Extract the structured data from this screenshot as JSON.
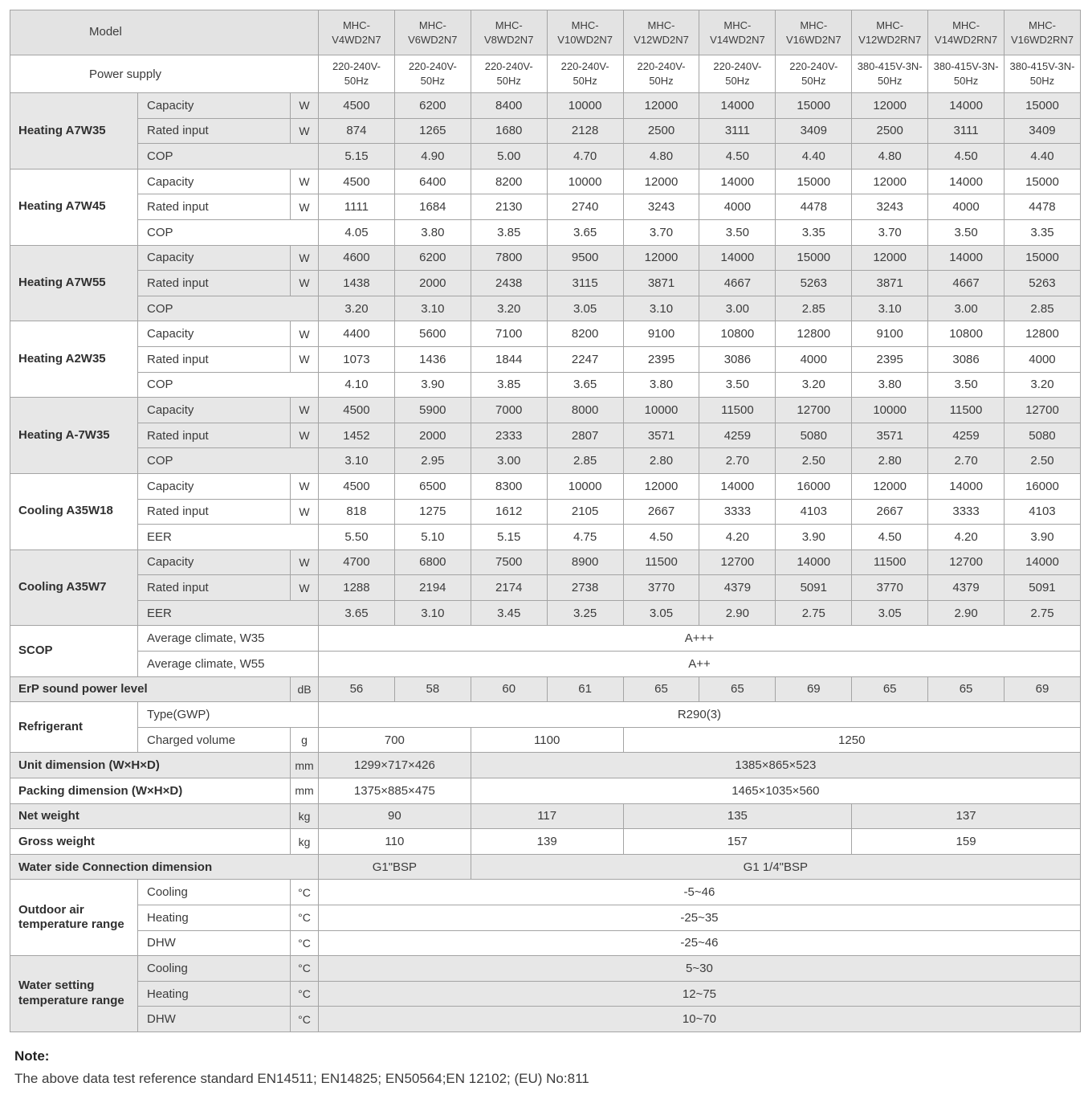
{
  "header": {
    "model_label": "Model",
    "models": [
      "MHC-V4WD2N7",
      "MHC-V6WD2N7",
      "MHC-V8WD2N7",
      "MHC-V10WD2N7",
      "MHC-V12WD2N7",
      "MHC-V14WD2N7",
      "MHC-V16WD2N7",
      "MHC-V12WD2RN7",
      "MHC-V14WD2RN7",
      "MHC-V16WD2RN7"
    ],
    "power_supply_label": "Power supply",
    "power_supplies": [
      "220-240V-50Hz",
      "220-240V-50Hz",
      "220-240V-50Hz",
      "220-240V-50Hz",
      "220-240V-50Hz",
      "220-240V-50Hz",
      "220-240V-50Hz",
      "380-415V-3N-50Hz",
      "380-415V-3N-50Hz",
      "380-415V-3N-50Hz"
    ]
  },
  "sections": [
    {
      "label": "Heating A7W35",
      "rows": [
        {
          "label": "Capacity",
          "unit": "W",
          "values": [
            "4500",
            "6200",
            "8400",
            "10000",
            "12000",
            "14000",
            "15000",
            "12000",
            "14000",
            "15000"
          ]
        },
        {
          "label": "Rated input",
          "unit": "W",
          "values": [
            "874",
            "1265",
            "1680",
            "2128",
            "2500",
            "3111",
            "3409",
            "2500",
            "3111",
            "3409"
          ]
        },
        {
          "label": "COP",
          "values": [
            "5.15",
            "4.90",
            "5.00",
            "4.70",
            "4.80",
            "4.50",
            "4.40",
            "4.80",
            "4.50",
            "4.40"
          ]
        }
      ]
    },
    {
      "label": "Heating A7W45",
      "rows": [
        {
          "label": "Capacity",
          "unit": "W",
          "values": [
            "4500",
            "6400",
            "8200",
            "10000",
            "12000",
            "14000",
            "15000",
            "12000",
            "14000",
            "15000"
          ]
        },
        {
          "label": "Rated input",
          "unit": "W",
          "values": [
            "1111",
            "1684",
            "2130",
            "2740",
            "3243",
            "4000",
            "4478",
            "3243",
            "4000",
            "4478"
          ]
        },
        {
          "label": "COP",
          "values": [
            "4.05",
            "3.80",
            "3.85",
            "3.65",
            "3.70",
            "3.50",
            "3.35",
            "3.70",
            "3.50",
            "3.35"
          ]
        }
      ]
    },
    {
      "label": "Heating A7W55",
      "rows": [
        {
          "label": "Capacity",
          "unit": "W",
          "values": [
            "4600",
            "6200",
            "7800",
            "9500",
            "12000",
            "14000",
            "15000",
            "12000",
            "14000",
            "15000"
          ]
        },
        {
          "label": "Rated input",
          "unit": "W",
          "values": [
            "1438",
            "2000",
            "2438",
            "3115",
            "3871",
            "4667",
            "5263",
            "3871",
            "4667",
            "5263"
          ]
        },
        {
          "label": "COP",
          "values": [
            "3.20",
            "3.10",
            "3.20",
            "3.05",
            "3.10",
            "3.00",
            "2.85",
            "3.10",
            "3.00",
            "2.85"
          ]
        }
      ]
    },
    {
      "label": "Heating A2W35",
      "rows": [
        {
          "label": "Capacity",
          "unit": "W",
          "values": [
            "4400",
            "5600",
            "7100",
            "8200",
            "9100",
            "10800",
            "12800",
            "9100",
            "10800",
            "12800"
          ]
        },
        {
          "label": "Rated input",
          "unit": "W",
          "values": [
            "1073",
            "1436",
            "1844",
            "2247",
            "2395",
            "3086",
            "4000",
            "2395",
            "3086",
            "4000"
          ]
        },
        {
          "label": "COP",
          "values": [
            "4.10",
            "3.90",
            "3.85",
            "3.65",
            "3.80",
            "3.50",
            "3.20",
            "3.80",
            "3.50",
            "3.20"
          ]
        }
      ]
    },
    {
      "label": "Heating A-7W35",
      "rows": [
        {
          "label": "Capacity",
          "unit": "W",
          "values": [
            "4500",
            "5900",
            "7000",
            "8000",
            "10000",
            "11500",
            "12700",
            "10000",
            "11500",
            "12700"
          ]
        },
        {
          "label": "Rated input",
          "unit": "W",
          "values": [
            "1452",
            "2000",
            "2333",
            "2807",
            "3571",
            "4259",
            "5080",
            "3571",
            "4259",
            "5080"
          ]
        },
        {
          "label": "COP",
          "values": [
            "3.10",
            "2.95",
            "3.00",
            "2.85",
            "2.80",
            "2.70",
            "2.50",
            "2.80",
            "2.70",
            "2.50"
          ]
        }
      ]
    },
    {
      "label": "Cooling A35W18",
      "rows": [
        {
          "label": "Capacity",
          "unit": "W",
          "values": [
            "4500",
            "6500",
            "8300",
            "10000",
            "12000",
            "14000",
            "16000",
            "12000",
            "14000",
            "16000"
          ]
        },
        {
          "label": "Rated input",
          "unit": "W",
          "values": [
            "818",
            "1275",
            "1612",
            "2105",
            "2667",
            "3333",
            "4103",
            "2667",
            "3333",
            "4103"
          ]
        },
        {
          "label": "EER",
          "values": [
            "5.50",
            "5.10",
            "5.15",
            "4.75",
            "4.50",
            "4.20",
            "3.90",
            "4.50",
            "4.20",
            "3.90"
          ]
        }
      ]
    },
    {
      "label": "Cooling A35W7",
      "rows": [
        {
          "label": "Capacity",
          "unit": "W",
          "values": [
            "4700",
            "6800",
            "7500",
            "8900",
            "11500",
            "12700",
            "14000",
            "11500",
            "12700",
            "14000"
          ]
        },
        {
          "label": "Rated input",
          "unit": "W",
          "values": [
            "1288",
            "2194",
            "2174",
            "2738",
            "3770",
            "4379",
            "5091",
            "3770",
            "4379",
            "5091"
          ]
        },
        {
          "label": "EER",
          "values": [
            "3.65",
            "3.10",
            "3.45",
            "3.25",
            "3.05",
            "2.90",
            "2.75",
            "3.05",
            "2.90",
            "2.75"
          ]
        }
      ]
    }
  ],
  "scop": {
    "label": "SCOP",
    "rows": [
      {
        "label": "Average climate, W35",
        "value": "A+++"
      },
      {
        "label": "Average climate, W55",
        "value": "A++"
      }
    ]
  },
  "erp": {
    "label": "ErP sound power level",
    "unit": "dB",
    "values": [
      "56",
      "58",
      "60",
      "61",
      "65",
      "65",
      "69",
      "65",
      "65",
      "69"
    ]
  },
  "refrigerant": {
    "label": "Refrigerant",
    "type_label": "Type(GWP)",
    "type_value": "R290(3)",
    "charged_label": "Charged volume",
    "charged_unit": "g",
    "charged_values": [
      "700",
      "1100",
      "1250"
    ]
  },
  "dims": [
    {
      "label": "Unit dimension (W×H×D)",
      "unit": "mm",
      "values": [
        "1299×717×426",
        "1385×865×523"
      ]
    },
    {
      "label": "Packing dimension (W×H×D)",
      "unit": "mm",
      "values": [
        "1375×885×475",
        "1465×1035×560"
      ]
    }
  ],
  "weights": [
    {
      "label": "Net weight",
      "unit": "kg",
      "values": [
        "90",
        "117",
        "135",
        "137"
      ]
    },
    {
      "label": "Gross weight",
      "unit": "kg",
      "values": [
        "110",
        "139",
        "157",
        "159"
      ]
    }
  ],
  "water_connection": {
    "label": "Water side Connection dimension",
    "values": [
      "G1\"BSP",
      "G1 1/4\"BSP"
    ]
  },
  "temp_ranges": [
    {
      "label": "Outdoor air temperature range",
      "rows": [
        {
          "label": "Cooling",
          "unit": "°C",
          "value": "-5~46"
        },
        {
          "label": "Heating",
          "unit": "°C",
          "value": "-25~35"
        },
        {
          "label": "DHW",
          "unit": "°C",
          "value": "-25~46"
        }
      ]
    },
    {
      "label": "Water setting temperature range",
      "rows": [
        {
          "label": "Cooling",
          "unit": "°C",
          "value": "5~30"
        },
        {
          "label": "Heating",
          "unit": "°C",
          "value": "12~75"
        },
        {
          "label": "DHW",
          "unit": "°C",
          "value": "10~70"
        }
      ]
    }
  ],
  "note": {
    "title": "Note:",
    "text": "The above data test reference standard EN14511; EN14825; EN50564;EN 12102; (EU) No:811"
  }
}
